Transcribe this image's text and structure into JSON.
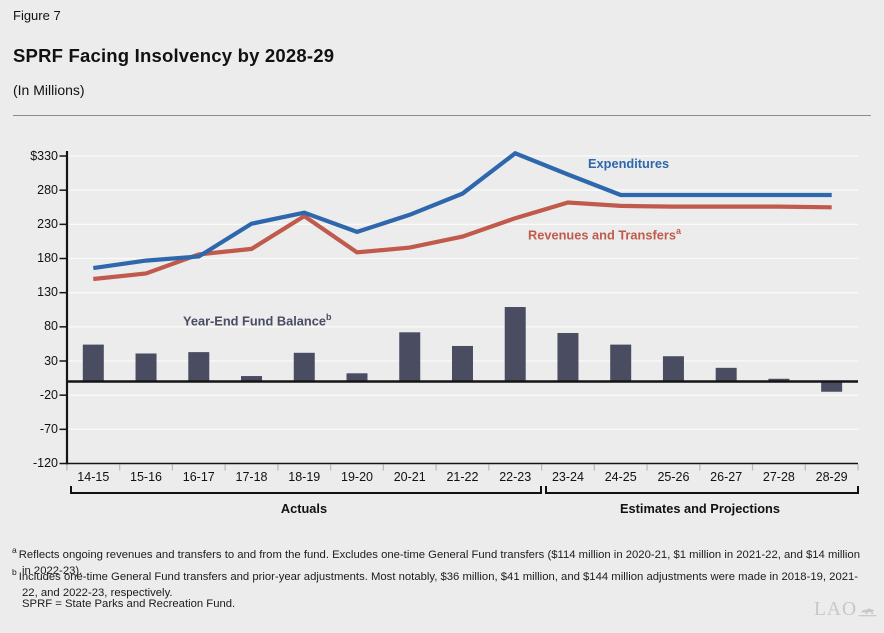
{
  "figure": {
    "label": "Figure 7",
    "title": "SPRF Facing Insolvency by 2028-29",
    "subtitle": "(In Millions)"
  },
  "chart_data": {
    "type": "combo bar + line",
    "categories": [
      "14-15",
      "15-16",
      "16-17",
      "17-18",
      "18-19",
      "19-20",
      "20-21",
      "21-22",
      "22-23",
      "23-24",
      "24-25",
      "25-26",
      "26-27",
      "27-28",
      "28-29"
    ],
    "series": [
      {
        "name": "Expenditures",
        "type": "line",
        "color": "#2f67ad",
        "values": [
          166,
          177,
          183,
          231,
          247,
          219,
          244,
          275,
          334,
          303,
          273,
          273,
          273,
          273,
          273
        ]
      },
      {
        "name": "Revenues and Transfers",
        "note_marker": "a",
        "type": "line",
        "color": "#c05a4c",
        "values": [
          150,
          158,
          186,
          194,
          242,
          189,
          196,
          212,
          239,
          262,
          257,
          256,
          256,
          256,
          255
        ]
      },
      {
        "name": "Year-End Fund Balance",
        "note_marker": "b",
        "type": "bar",
        "color": "#4a4d62",
        "values": [
          54,
          41,
          43,
          8,
          42,
          12,
          72,
          52,
          109,
          71,
          54,
          37,
          20,
          4,
          -15
        ]
      }
    ],
    "y_axis": {
      "tick_labels": [
        "$330",
        "280",
        "230",
        "180",
        "130",
        "80",
        "30",
        "-20",
        "-70",
        "-120"
      ],
      "tick_values": [
        330,
        280,
        230,
        180,
        130,
        80,
        30,
        -20,
        -70,
        -120
      ],
      "min": -120,
      "max": 330,
      "gridlines": true
    },
    "x_groups": [
      {
        "label": "Actuals",
        "from_index": 0,
        "to_index": 8
      },
      {
        "label": "Estimates and Projections",
        "from_index": 9,
        "to_index": 14
      }
    ],
    "zero_baseline": true,
    "legend_position": "labels beside lines"
  },
  "footnotes": [
    {
      "marker": "a",
      "text": "Reflects ongoing revenues and transfers to and from the fund. Excludes one-time General Fund transfers ($114 million in 2020-21, $1 million in 2021-22, and $14 million in 2022-23)."
    },
    {
      "marker": "b",
      "text": "Includes one-time General Fund transfers and prior-year adjustments. Most notably, $36 million, $41 million, and $144 million adjustments were made in 2018-19, 2021-22, and 2022-23, respectively."
    }
  ],
  "abbreviation_note": "SPRF = State Parks and Recreation Fund.",
  "logo": {
    "text": "LAO"
  },
  "colors": {
    "background": "#ececec",
    "gridline": "#fafaf8",
    "axis": "#141414",
    "x_tick": "#b9b9b9",
    "divider": "#8c8c8c",
    "logo_gray": "#c7c7ca"
  }
}
